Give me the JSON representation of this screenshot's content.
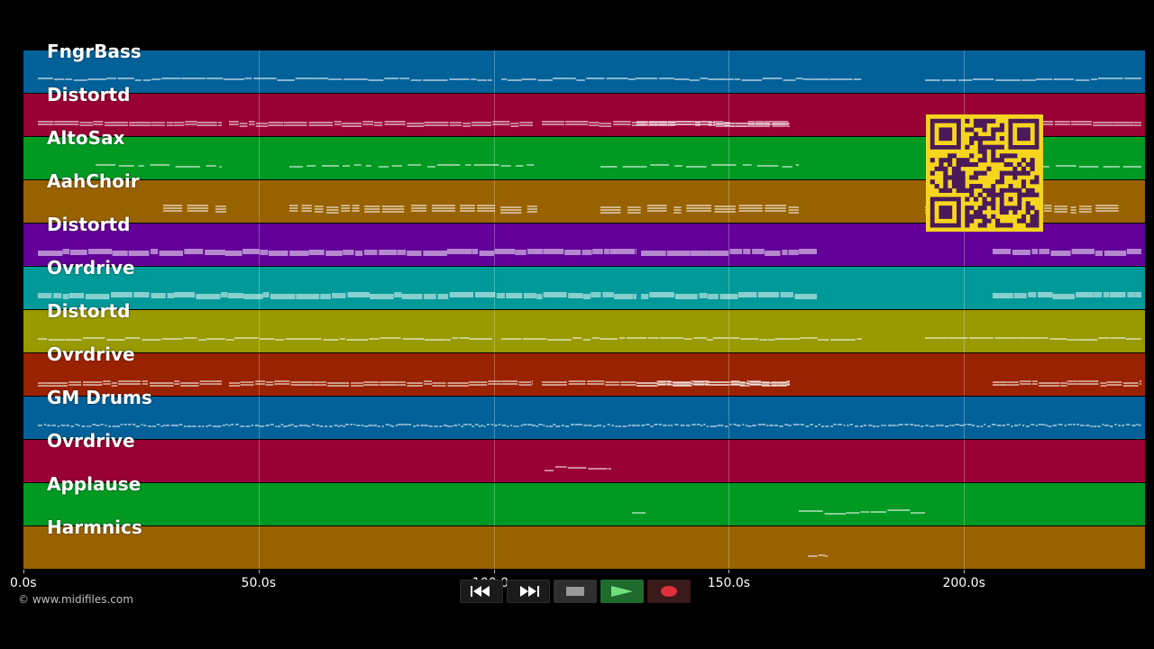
{
  "tracks": [
    {
      "name": "FngrBass",
      "color": "#026198",
      "note_style": "line"
    },
    {
      "name": "Distortd",
      "color": "#990033",
      "note_style": "double"
    },
    {
      "name": "AltoSax",
      "color": "#009922",
      "note_style": "dotted"
    },
    {
      "name": "AahChoir",
      "color": "#996200",
      "note_style": "chord"
    },
    {
      "name": "Distortd",
      "color": "#620099",
      "note_style": "dense"
    },
    {
      "name": "Ovrdrive",
      "color": "#009999",
      "note_style": "dense"
    },
    {
      "name": "Distortd",
      "color": "#999900",
      "note_style": "line"
    },
    {
      "name": "Ovrdrive",
      "color": "#992200",
      "note_style": "double"
    },
    {
      "name": "GM Drums",
      "color": "#026198",
      "note_style": "drums"
    },
    {
      "name": "Ovrdrive",
      "color": "#990033",
      "note_style": "sparse"
    },
    {
      "name": "Applause",
      "color": "#009922",
      "note_style": "sparse"
    },
    {
      "name": "Harmnics",
      "color": "#996200",
      "note_style": "sparse"
    }
  ],
  "timeline": {
    "max_seconds": 238.5,
    "ticks": [
      {
        "label": "0.0s",
        "seconds": 0
      },
      {
        "label": "50.0s",
        "seconds": 50
      },
      {
        "label": "100.0s",
        "seconds": 100
      },
      {
        "label": "150.0s",
        "seconds": 150
      },
      {
        "label": "200.0s",
        "seconds": 200
      }
    ]
  },
  "copyright": "© www.midifiles.com",
  "transport": {
    "buttons": [
      {
        "name": "rewind",
        "icon": "rewind-icon"
      },
      {
        "name": "fast-forward",
        "icon": "fast-forward-icon"
      },
      {
        "name": "stop",
        "icon": "stop-icon"
      },
      {
        "name": "play",
        "icon": "play-icon"
      },
      {
        "name": "record",
        "icon": "record-icon"
      }
    ]
  },
  "overlay": {
    "qr_icon": "qr-code-icon",
    "qr_color": "#f5d51e"
  }
}
